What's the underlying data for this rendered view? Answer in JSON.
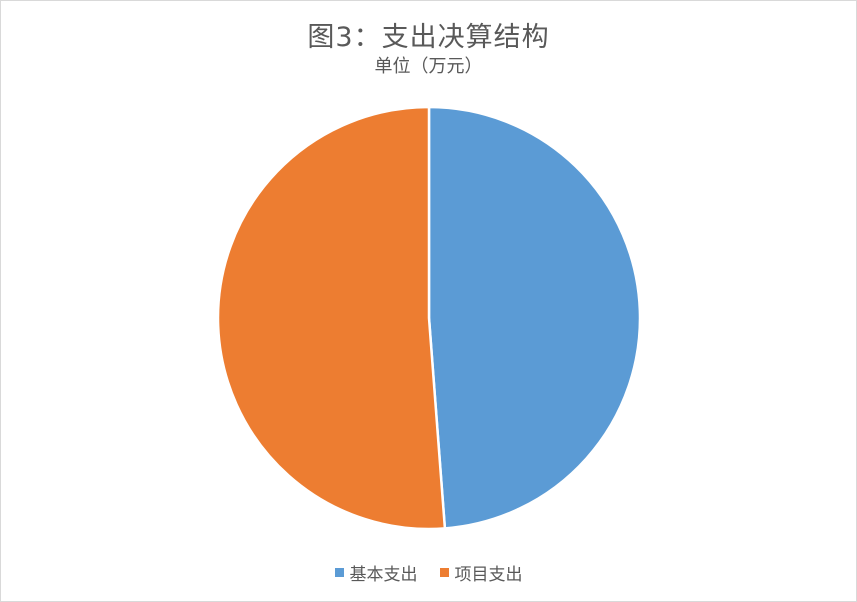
{
  "chart_data": {
    "type": "pie",
    "title": "图3：支出决算结构",
    "subtitle": "单位（万元）",
    "categories": [
      "基本支出",
      "项目支出"
    ],
    "values": [
      48.8,
      51.2
    ],
    "colors": [
      "#5b9bd5",
      "#ed7d31"
    ],
    "legend_position": "bottom"
  }
}
